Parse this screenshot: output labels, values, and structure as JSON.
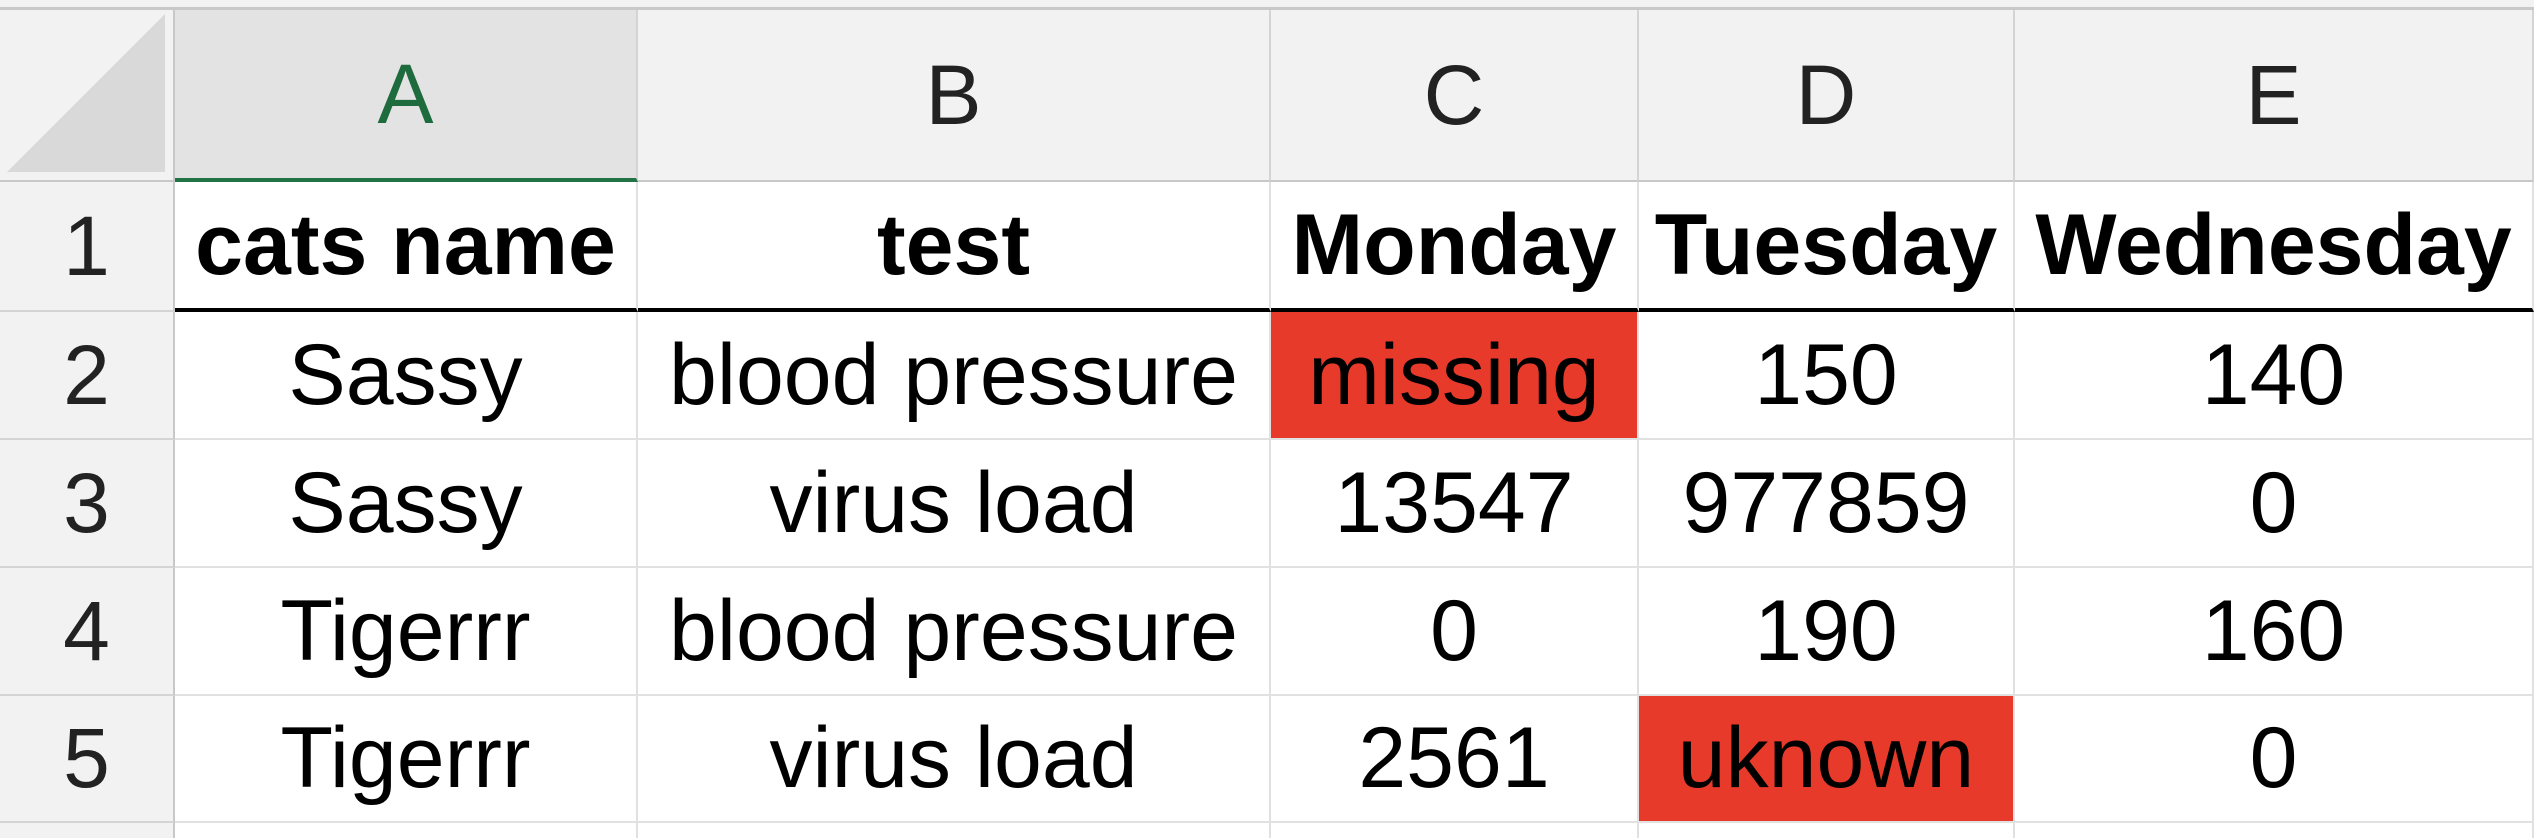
{
  "columns": [
    "A",
    "B",
    "C",
    "D",
    "E"
  ],
  "selected_column": "A",
  "row_numbers": [
    "1",
    "2",
    "3",
    "4",
    "5"
  ],
  "header_row": [
    "cats name",
    "test",
    "Monday",
    "Tuesday",
    "Wednesday"
  ],
  "rows": [
    [
      "Sassy",
      "blood pressure",
      "missing",
      "150",
      "140"
    ],
    [
      "Sassy",
      "virus load",
      "13547",
      "977859",
      "0"
    ],
    [
      "Tigerrr",
      "blood pressure",
      "0",
      "190",
      "160"
    ],
    [
      "Tigerrr",
      "virus load",
      "2561",
      "uknown",
      "0"
    ]
  ],
  "highlight_color": "#e83a2a",
  "selected_header_color": "#217346"
}
